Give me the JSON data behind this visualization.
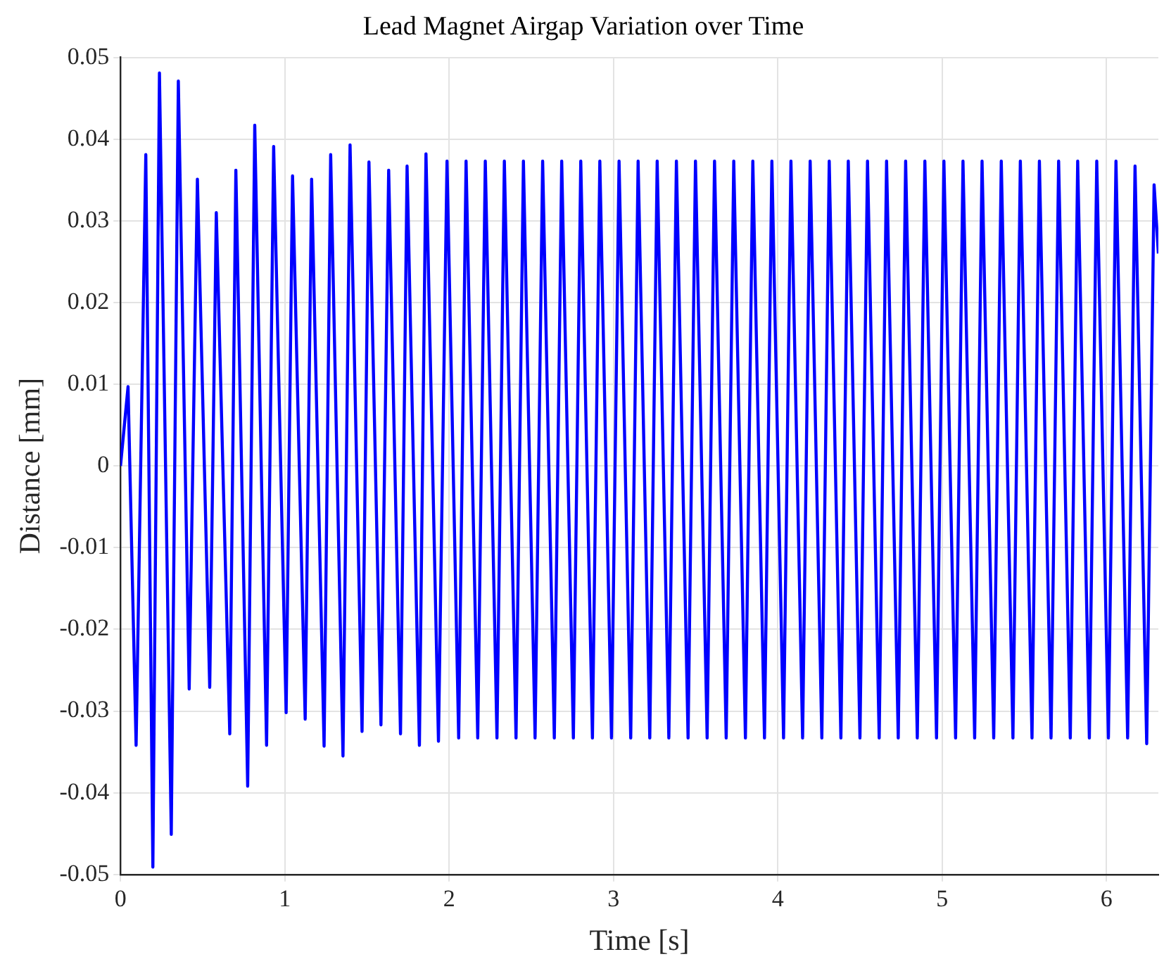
{
  "chart_data": {
    "type": "line",
    "title": "Lead Magnet Airgap Variation over Time",
    "xlabel": "Time [s]",
    "ylabel": "Distance [mm]",
    "xlim": [
      0,
      6.316
    ],
    "xticks": [
      0,
      1,
      2,
      3,
      4,
      5,
      6
    ],
    "ylim": [
      -0.05,
      0.05
    ],
    "yticks": [
      -0.05,
      -0.04,
      -0.03,
      -0.02,
      -0.01,
      0,
      0.01,
      0.02,
      0.03,
      0.04,
      0.05
    ],
    "grid": true,
    "legend": false,
    "marker": "none",
    "line_style": "solid",
    "series": [
      {
        "color": "#0000ff",
        "x": [
          0,
          0.046,
          0.095,
          0.154,
          0.197,
          0.237,
          0.309,
          0.352,
          0.418,
          0.468,
          0.543,
          0.583,
          0.665,
          0.702,
          0.774,
          0.817,
          0.889,
          0.932,
          1.008,
          1.047,
          1.124,
          1.163,
          1.239,
          1.279,
          1.354,
          1.397,
          1.47,
          1.512,
          1.585,
          1.632,
          1.704,
          1.744,
          1.819,
          1.859,
          1.935,
          1.987,
          2.058,
          2.103,
          2.174,
          2.22,
          2.291,
          2.336,
          2.407,
          2.452,
          2.523,
          2.569,
          2.64,
          2.685,
          2.756,
          2.801,
          2.872,
          2.917,
          2.988,
          3.034,
          3.105,
          3.15,
          3.221,
          3.266,
          3.337,
          3.383,
          3.454,
          3.499,
          3.57,
          3.615,
          3.686,
          3.732,
          3.803,
          3.848,
          3.919,
          3.964,
          4.035,
          4.08,
          4.151,
          4.197,
          4.268,
          4.313,
          4.384,
          4.429,
          4.5,
          4.546,
          4.617,
          4.662,
          4.733,
          4.778,
          4.849,
          4.895,
          4.966,
          5.011,
          5.082,
          5.127,
          5.198,
          5.243,
          5.314,
          5.36,
          5.431,
          5.476,
          5.547,
          5.592,
          5.663,
          5.709,
          5.78,
          5.825,
          5.896,
          5.941,
          6.012,
          6.058,
          6.129,
          6.174,
          6.245,
          6.29,
          6.316
        ],
        "values": [
          0,
          0.0097,
          -0.0342,
          0.0381,
          -0.0491,
          0.0481,
          -0.0451,
          0.0471,
          -0.0273,
          0.0351,
          -0.0271,
          0.031,
          -0.0328,
          0.0362,
          -0.0392,
          0.0417,
          -0.0342,
          0.0391,
          -0.0302,
          0.0355,
          -0.031,
          0.0351,
          -0.0343,
          0.0381,
          -0.0355,
          0.0393,
          -0.0325,
          0.0372,
          -0.0317,
          0.0362,
          -0.0328,
          0.0367,
          -0.0342,
          0.0382,
          -0.0337,
          0.0373,
          -0.0333,
          0.0373,
          -0.0333,
          0.0373,
          -0.0333,
          0.0373,
          -0.0333,
          0.0373,
          -0.0333,
          0.0373,
          -0.0333,
          0.0373,
          -0.0333,
          0.0373,
          -0.0333,
          0.0373,
          -0.0333,
          0.0373,
          -0.0333,
          0.0373,
          -0.0333,
          0.0373,
          -0.0333,
          0.0373,
          -0.0333,
          0.0373,
          -0.0333,
          0.0373,
          -0.0333,
          0.0373,
          -0.0333,
          0.0373,
          -0.0333,
          0.0373,
          -0.0333,
          0.0373,
          -0.0333,
          0.0373,
          -0.0333,
          0.0373,
          -0.0333,
          0.0373,
          -0.0333,
          0.0373,
          -0.0333,
          0.0373,
          -0.0333,
          0.0373,
          -0.0333,
          0.0373,
          -0.0333,
          0.0373,
          -0.0333,
          0.0373,
          -0.0333,
          0.0373,
          -0.0333,
          0.0373,
          -0.0333,
          0.0373,
          -0.0333,
          0.0373,
          -0.0333,
          0.0373,
          -0.0333,
          0.0373,
          -0.0333,
          0.0373,
          -0.0333,
          0.0373,
          -0.0333,
          0.0367,
          -0.034,
          0.0344,
          0.026
        ]
      }
    ]
  }
}
